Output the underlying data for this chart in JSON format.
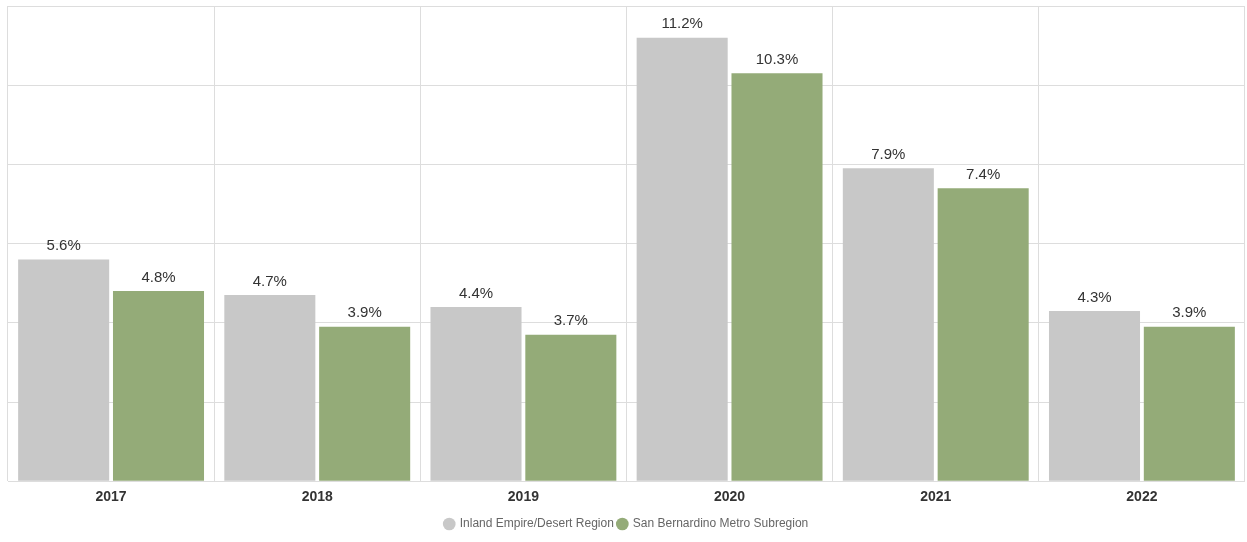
{
  "chart_data": {
    "type": "bar",
    "categories": [
      "2017",
      "2018",
      "2019",
      "2020",
      "2021",
      "2022"
    ],
    "series": [
      {
        "name": "Inland Empire/Desert Region",
        "color": "#c8c8c8",
        "values": [
          5.6,
          4.7,
          4.4,
          11.2,
          7.9,
          4.3
        ],
        "value_labels": [
          "5.6%",
          "4.7%",
          "4.4%",
          "11.2%",
          "7.9%",
          "4.3%"
        ]
      },
      {
        "name": "San Bernardino Metro Subregion",
        "color": "#94ab78",
        "values": [
          4.8,
          3.9,
          3.7,
          10.3,
          7.4,
          3.9
        ],
        "value_labels": [
          "4.8%",
          "3.9%",
          "3.7%",
          "10.3%",
          "7.4%",
          "3.9%"
        ]
      }
    ],
    "ylim": [
      0,
      12
    ],
    "yticks": [
      {
        "value": 0,
        "label": null
      },
      {
        "value": 2,
        "label": null
      },
      {
        "value": 4,
        "label": null
      },
      {
        "value": 6,
        "label": null
      },
      {
        "value": 8,
        "label": null
      },
      {
        "value": 10,
        "label": null
      },
      {
        "value": 12,
        "label": null
      }
    ],
    "tick_labels": "x",
    "grid": true,
    "legend": "bottom"
  }
}
